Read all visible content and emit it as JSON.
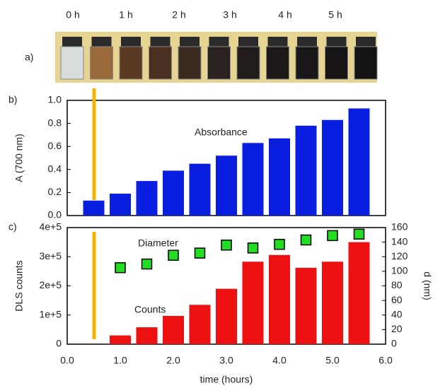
{
  "photo": {
    "label": "a)",
    "times": [
      "0 h",
      "1 h",
      "2 h",
      "3 h",
      "4 h",
      "5 h"
    ]
  },
  "chart_data": [
    {
      "type": "bar",
      "panel_label": "b)",
      "ylabel": "A (700 nm)",
      "x": [
        0.5,
        1.0,
        1.5,
        2.0,
        2.5,
        3.0,
        3.5,
        4.0,
        4.5,
        5.0,
        5.5
      ],
      "series": [
        {
          "name": "Absorbance",
          "color": "#0a1ee0",
          "values": [
            0.13,
            0.19,
            0.3,
            0.39,
            0.45,
            0.52,
            0.63,
            0.67,
            0.78,
            0.83,
            0.93
          ]
        }
      ],
      "xlim": [
        0,
        6
      ],
      "ylim": [
        0,
        1.0
      ],
      "yticks": [
        {
          "value": 0,
          "label": "0.0"
        },
        0.2,
        0.4,
        0.6,
        0.8,
        {
          "value": 1.0,
          "label": "1.0"
        }
      ]
    },
    {
      "type": "combo",
      "panel_label": "c)",
      "ylabel": "DLS counts",
      "y2label": "d (nm)",
      "xlabel": "time (hours)",
      "x": [
        1.0,
        1.5,
        2.0,
        2.5,
        3.0,
        3.5,
        4.0,
        4.5,
        5.0,
        5.5
      ],
      "series": [
        {
          "name": "Counts",
          "type": "bar",
          "color": "#ee1111",
          "values": [
            30000,
            58000,
            97000,
            135000,
            190000,
            283000,
            306000,
            262000,
            283000,
            350000
          ]
        },
        {
          "name": "Diameter",
          "type": "scatter",
          "axis": "y2",
          "color": "#22dd22",
          "values": [
            105,
            110,
            122,
            125,
            136,
            132,
            137,
            143,
            149,
            151
          ]
        }
      ],
      "xlim": [
        0,
        6
      ],
      "ylim": [
        0,
        400000
      ],
      "y2lim": [
        0,
        160
      ],
      "xticks": [
        {
          "value": 0,
          "label": "0.0"
        },
        {
          "value": 1,
          "label": "1.0"
        },
        {
          "value": 2,
          "label": "2.0"
        },
        {
          "value": 3,
          "label": "3.0"
        },
        {
          "value": 4,
          "label": "4.0"
        },
        {
          "value": 5,
          "label": "5.0"
        },
        {
          "value": 6,
          "label": "6.0"
        }
      ],
      "yticks": [
        0,
        {
          "value": 100000,
          "label": "1e+5"
        },
        {
          "value": 200000,
          "label": "2e+5"
        },
        {
          "value": 300000,
          "label": "3e+5"
        },
        {
          "value": 400000,
          "label": "4e+5"
        }
      ],
      "y2ticks": [
        0,
        20,
        40,
        60,
        80,
        100,
        120,
        140,
        160
      ]
    }
  ]
}
